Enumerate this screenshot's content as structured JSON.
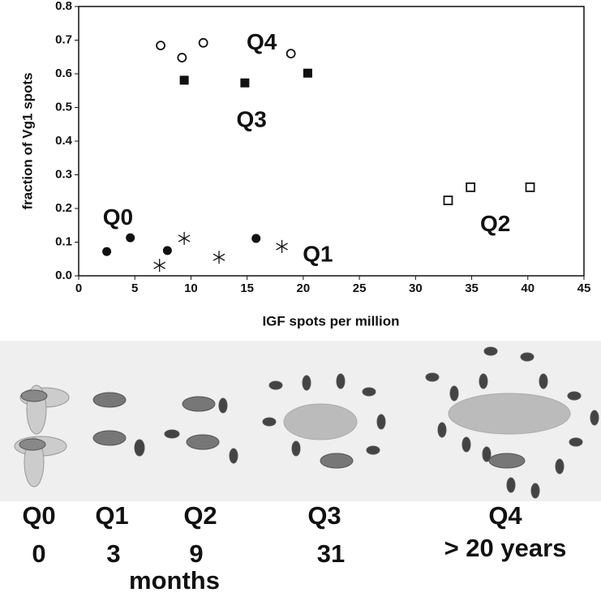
{
  "chart_data": {
    "type": "scatter",
    "xlabel": "IGF spots per million",
    "ylabel": "fraction of Vg1 spots",
    "xlim": [
      0,
      45
    ],
    "ylim": [
      0,
      0.8
    ],
    "xticks": [
      0,
      5,
      10,
      15,
      20,
      25,
      30,
      35,
      40,
      45
    ],
    "yticks": [
      {
        "value": 0,
        "label": "0.0"
      },
      0.1,
      0.2,
      0.3,
      0.4,
      0.5,
      0.6,
      0.7,
      0.8
    ],
    "series": [
      {
        "marker": "circle-filled",
        "color": "#111111",
        "x": [
          2.5,
          4.6,
          7.9,
          15.8
        ],
        "values": [
          0.072,
          0.113,
          0.075,
          0.111
        ]
      },
      {
        "marker": "asterisk",
        "color": "#111111",
        "x": [
          7.2,
          9.4,
          12.5,
          18.1
        ],
        "values": [
          0.031,
          0.111,
          0.055,
          0.087
        ]
      },
      {
        "marker": "square-open",
        "color": "#111111",
        "x": [
          32.9,
          34.9,
          40.2
        ],
        "values": [
          0.224,
          0.263,
          0.263
        ]
      },
      {
        "marker": "square-filled",
        "color": "#111111",
        "x": [
          9.4,
          14.8,
          20.4
        ],
        "values": [
          0.581,
          0.573,
          0.602
        ]
      },
      {
        "marker": "circle-open",
        "color": "#111111",
        "x": [
          7.3,
          9.2,
          11.1,
          18.9
        ],
        "values": [
          0.684,
          0.648,
          0.692,
          0.66
        ]
      }
    ],
    "annotations": [
      {
        "text": "Q4",
        "x": 16.3,
        "y": 0.69
      },
      {
        "text": "Q3",
        "x": 15.4,
        "y": 0.46
      },
      {
        "text": "Q0",
        "x": 3.5,
        "y": 0.17
      },
      {
        "text": "Q1",
        "x": 21.3,
        "y": 0.06
      },
      {
        "text": "Q2",
        "x": 37.1,
        "y": 0.15
      }
    ]
  },
  "illustration": {
    "stages": [
      {
        "label": "Q0",
        "time": "0"
      },
      {
        "label": "Q1",
        "time": "3"
      },
      {
        "label": "Q2",
        "time": "9"
      },
      {
        "label": "Q3",
        "time": "31"
      },
      {
        "label": "Q4",
        "time": "> 20 years"
      }
    ],
    "unit": "months"
  }
}
